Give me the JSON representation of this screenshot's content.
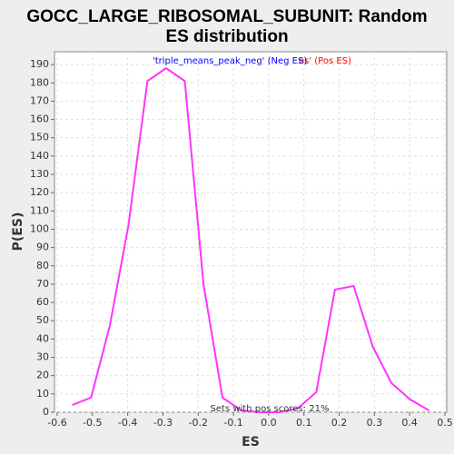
{
  "chart_data": {
    "type": "line",
    "title": [
      "GOCC_LARGE_RIBOSOMAL_SUBUNIT: Random",
      "ES distribution"
    ],
    "xlabel": "ES",
    "ylabel": "P(ES)",
    "legend": [
      {
        "text": "os' (Pos ES)",
        "color": "#ff0000"
      },
      {
        "text": "'triple_means_peak_neg' (Neg ES)",
        "color": "#0000ff"
      }
    ],
    "annotation": "Sets with pos scores: 21%",
    "x": [
      -0.557,
      -0.504,
      -0.451,
      -0.398,
      -0.344,
      -0.291,
      -0.238,
      -0.185,
      -0.131,
      -0.078,
      -0.025,
      0.029,
      0.082,
      0.135,
      0.188,
      0.241,
      0.295,
      0.348,
      0.401,
      0.455
    ],
    "series": [
      {
        "color": "#ff33ff",
        "values": [
          4,
          8,
          47,
          102,
          181,
          188,
          181,
          70,
          8,
          1,
          0,
          0,
          2,
          11,
          67,
          69,
          36,
          16,
          7,
          1
        ]
      }
    ],
    "xlim": [
      -0.6,
      0.5
    ],
    "xticks": [
      -0.6,
      -0.5,
      -0.4,
      -0.3,
      -0.2,
      -0.1,
      {
        "value": 0,
        "label": "0.0"
      },
      0.1,
      0.2,
      0.3,
      0.4,
      0.5
    ],
    "ylim": [
      0,
      197
    ],
    "yticks": [
      0,
      10,
      20,
      30,
      40,
      50,
      60,
      70,
      80,
      90,
      100,
      110,
      120,
      130,
      140,
      150,
      160,
      170,
      180,
      190
    ],
    "grid": true
  }
}
